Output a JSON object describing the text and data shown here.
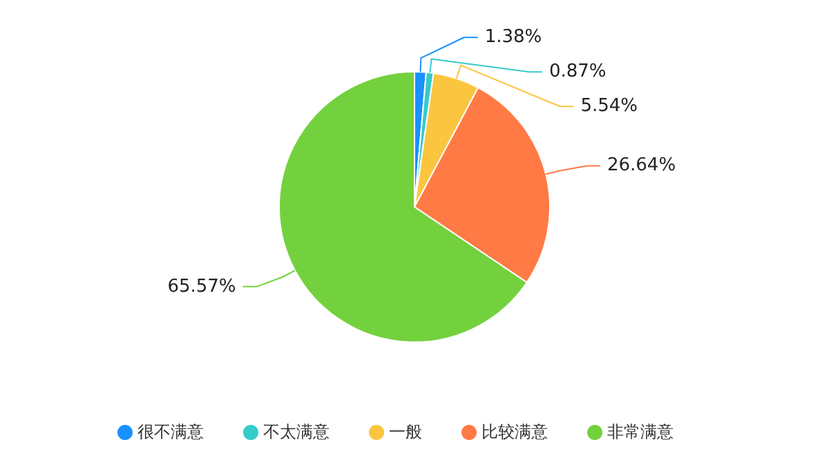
{
  "chart_data": {
    "type": "pie",
    "categories": [
      "很不满意",
      "不太满意",
      "一般",
      "比较满意",
      "非常满意"
    ],
    "values": [
      1.38,
      0.87,
      5.54,
      26.64,
      65.57
    ],
    "value_labels": [
      "1.38%",
      "0.87%",
      "5.54%",
      "26.64%",
      "65.57%"
    ],
    "colors": [
      "#1890ff",
      "#36cbcb",
      "#fbc53f",
      "#ff7a45",
      "#73d13d"
    ],
    "legend": "bottom"
  }
}
